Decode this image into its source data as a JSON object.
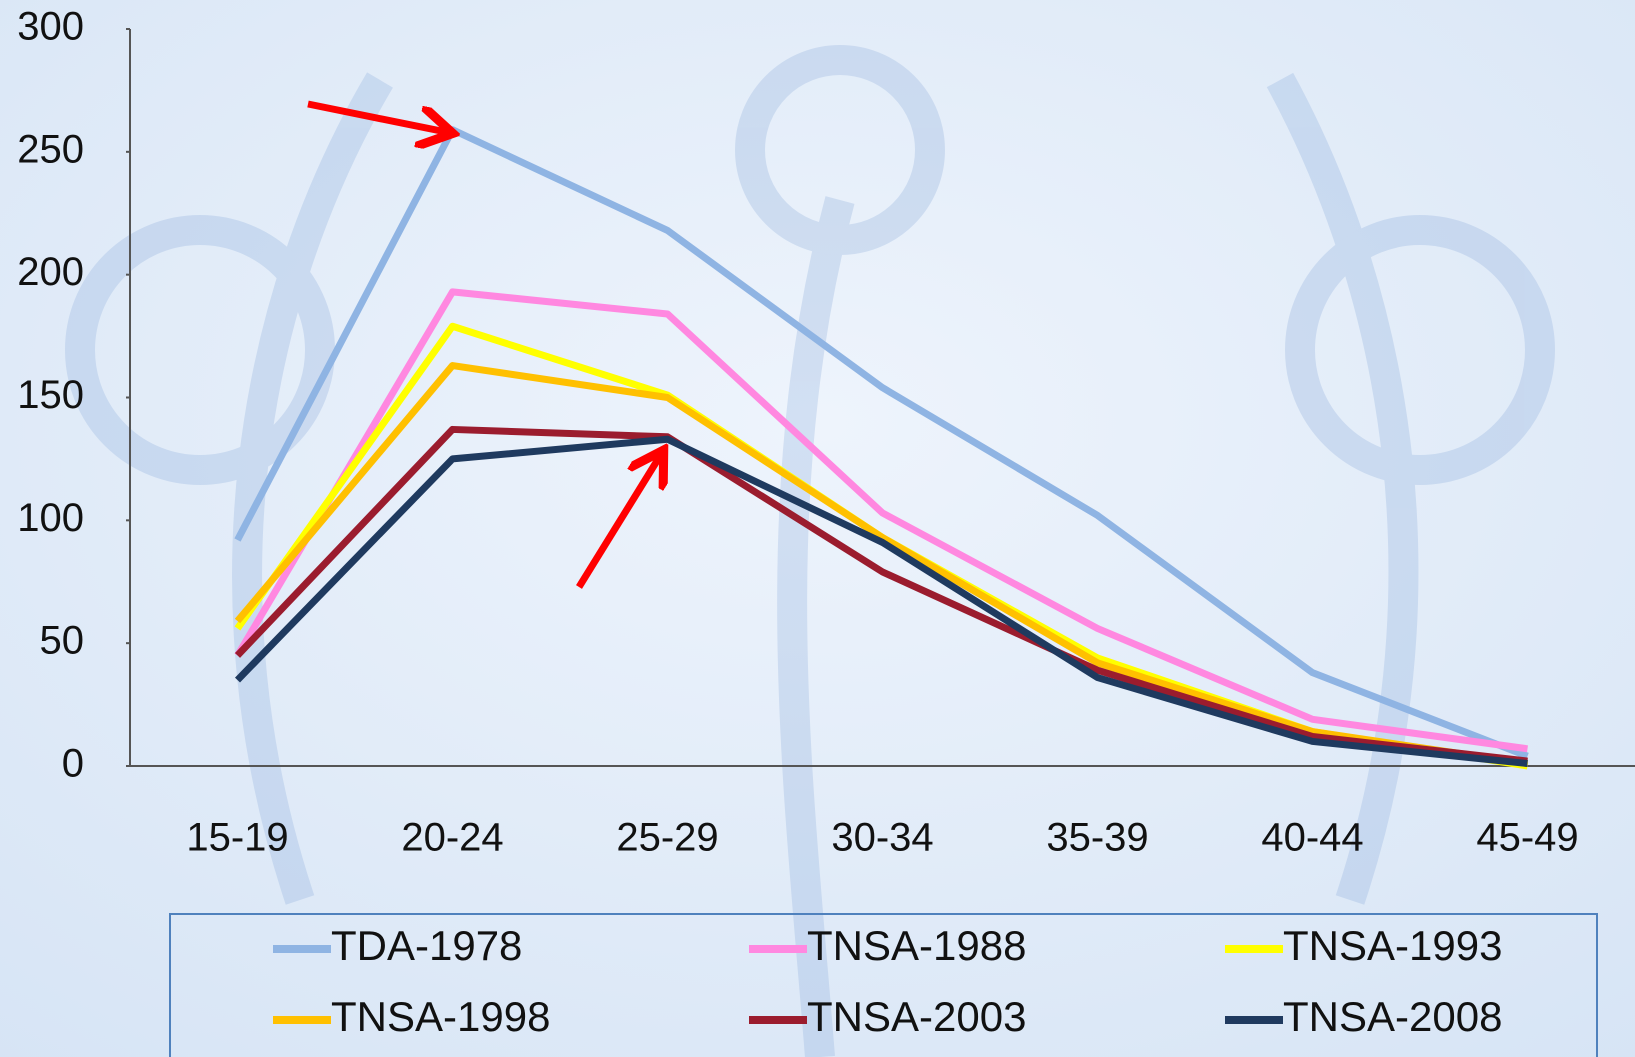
{
  "chart_data": {
    "type": "line",
    "categories": [
      "15-19",
      "20-24",
      "25-29",
      "30-34",
      "35-39",
      "40-44",
      "45-49"
    ],
    "series": [
      {
        "name": "TDA-1978",
        "color": "#8fb4e3",
        "values": [
          92,
          259,
          218,
          154,
          102,
          38,
          4
        ]
      },
      {
        "name": "TNSA-1988",
        "color": "#ff88e0",
        "values": [
          45,
          193,
          184,
          103,
          56,
          19,
          7
        ]
      },
      {
        "name": "TNSA-1993",
        "color": "#ffff00",
        "values": [
          56,
          179,
          151,
          93,
          44,
          14,
          0
        ]
      },
      {
        "name": "TNSA-1998",
        "color": "#ffc000",
        "values": [
          59,
          163,
          150,
          93,
          42,
          14,
          1
        ]
      },
      {
        "name": "TNSA-2003",
        "color": "#9b1c2e",
        "values": [
          45,
          137,
          134,
          79,
          39,
          12,
          2
        ]
      },
      {
        "name": "TNSA-2008",
        "color": "#1f3a5f",
        "values": [
          35,
          125,
          133,
          91,
          36,
          10,
          1
        ]
      }
    ],
    "ylim": [
      0,
      300
    ],
    "yticks": [
      0,
      50,
      100,
      150,
      200,
      250,
      300
    ],
    "grid": false
  }
}
